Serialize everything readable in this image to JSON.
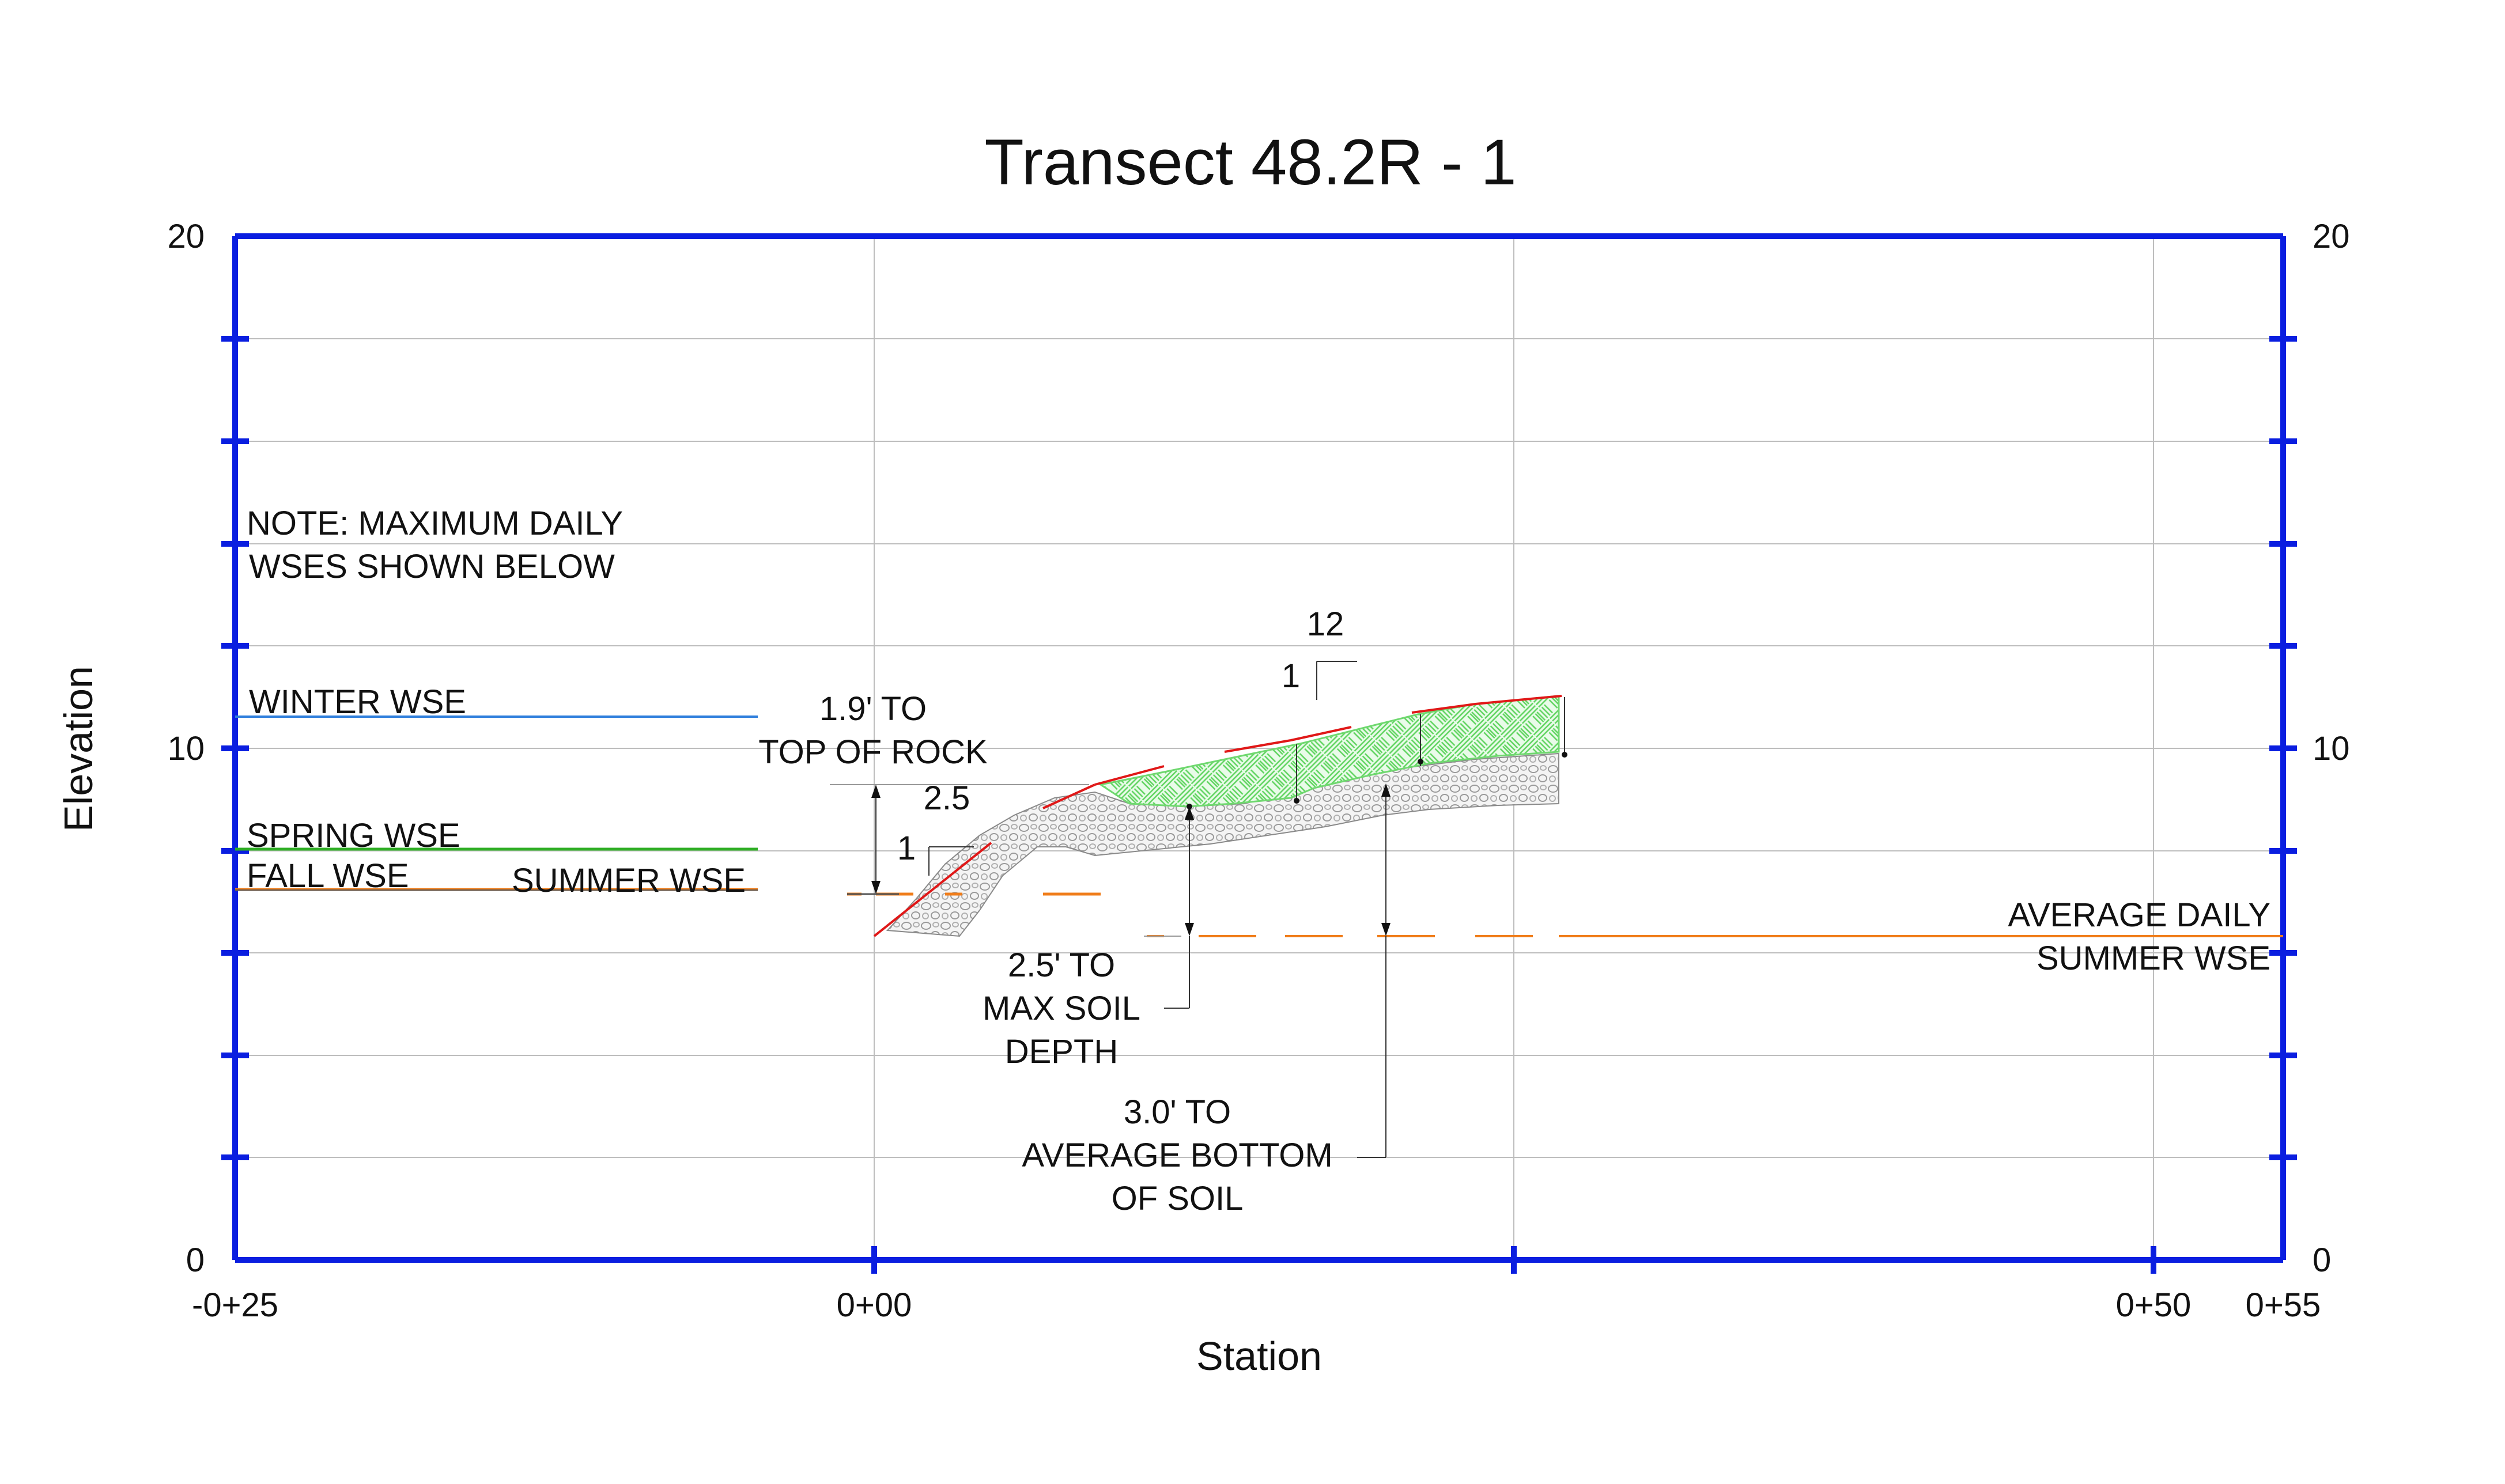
{
  "title": "Transect  48.2R - 1",
  "axes": {
    "x_label": "Station",
    "y_label": "Elevation",
    "x_ticks": [
      {
        "value": -25,
        "label": "-0+25"
      },
      {
        "value": 0,
        "label": "0+00"
      },
      {
        "value": 50,
        "label": "0+50"
      },
      {
        "value": 55,
        "label": "0+55"
      }
    ],
    "y_ticks_left": [
      {
        "value": 0,
        "label": "0"
      },
      {
        "value": 10,
        "label": "10"
      },
      {
        "value": 20,
        "label": "20"
      }
    ],
    "y_ticks_right": [
      {
        "value": 0,
        "label": "0"
      },
      {
        "value": 10,
        "label": "10"
      },
      {
        "value": 20,
        "label": "20"
      }
    ],
    "x_range": [
      -25,
      55
    ],
    "y_range": [
      0,
      20
    ]
  },
  "annotations": {
    "note_line1": "NOTE: MAXIMUM DAILY",
    "note_line2": "WSES SHOWN BELOW",
    "winter": "WINTER WSE",
    "spring": "SPRING WSE",
    "fall": "FALL WSE",
    "summer": "SUMMER WSE",
    "avg_summer_line1": "AVERAGE DAILY",
    "avg_summer_line2": "SUMMER WSE",
    "rock_line1": "1.9' TO",
    "rock_line2": "TOP OF ROCK",
    "slope_run": "2.5",
    "slope_rise": "1",
    "slope2_run": "12",
    "slope2_rise": "1",
    "soil_depth_line1": "2.5' TO",
    "soil_depth_line2": "MAX SOIL",
    "soil_depth_line3": "DEPTH",
    "avg_bottom_line1": "3.0' TO",
    "avg_bottom_line2": "AVERAGE BOTTOM",
    "avg_bottom_line3": "OF SOIL"
  },
  "colors": {
    "frame": "#0a1ee0",
    "winter": "#2f7fdc",
    "spring": "#2fae25",
    "fall": "#f07d1a",
    "summer": "#f07d1a",
    "surface": "#e01818",
    "soil_fill": "#8be88b"
  }
}
